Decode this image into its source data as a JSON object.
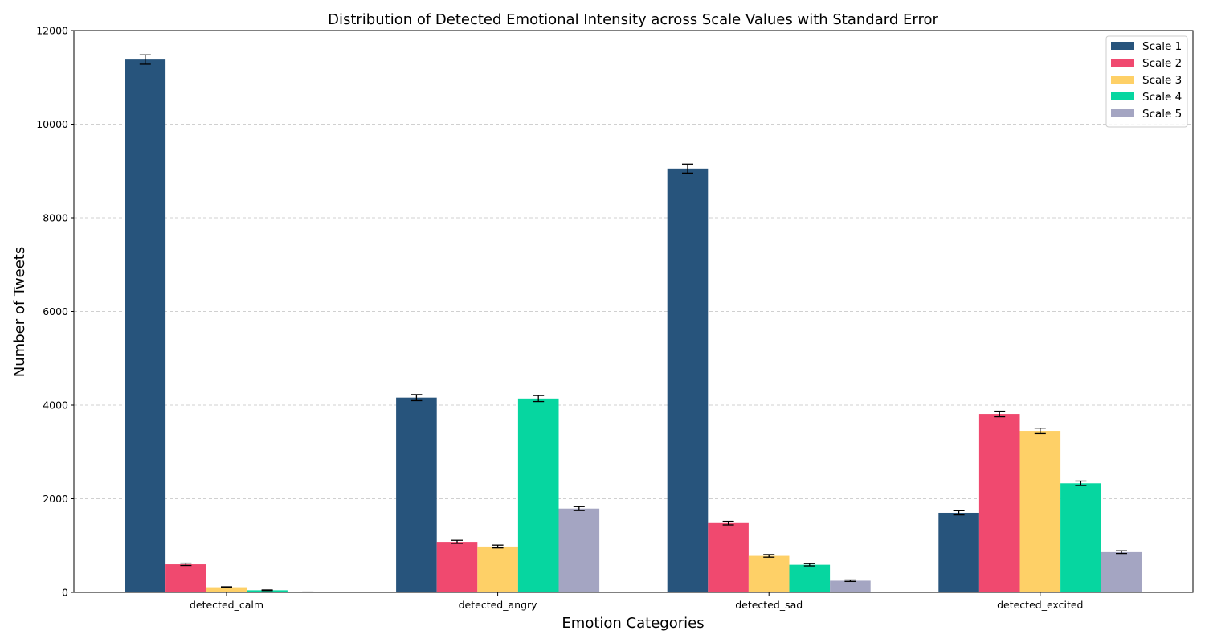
{
  "chart_data": {
    "type": "bar",
    "title": "Distribution of Detected Emotional Intensity across Scale Values with Standard Error",
    "xlabel": "Emotion Categories",
    "ylabel": "Number of Tweets",
    "categories": [
      "detected_calm",
      "detected_angry",
      "detected_sad",
      "detected_excited"
    ],
    "ylim": [
      0,
      12000
    ],
    "yticks": [
      0,
      2000,
      4000,
      6000,
      8000,
      10000,
      12000
    ],
    "grid": true,
    "legend_position": "top-right",
    "series": [
      {
        "name": "Scale 1",
        "color": "#27547c",
        "values": [
          11380,
          4160,
          9050,
          1700
        ],
        "errors": [
          100,
          65,
          95,
          45
        ]
      },
      {
        "name": "Scale 2",
        "color": "#f0496f",
        "values": [
          600,
          1080,
          1480,
          3810
        ],
        "errors": [
          25,
          32,
          38,
          60
        ]
      },
      {
        "name": "Scale 3",
        "color": "#fed067",
        "values": [
          110,
          980,
          780,
          3450
        ],
        "errors": [
          10,
          30,
          28,
          58
        ]
      },
      {
        "name": "Scale 4",
        "color": "#06d6a0",
        "values": [
          45,
          4140,
          590,
          2330
        ],
        "errors": [
          7,
          64,
          24,
          48
        ]
      },
      {
        "name": "Scale 5",
        "color": "#a4a5c2",
        "values": [
          5,
          1790,
          250,
          860
        ],
        "errors": [
          2,
          42,
          16,
          29
        ]
      }
    ]
  }
}
